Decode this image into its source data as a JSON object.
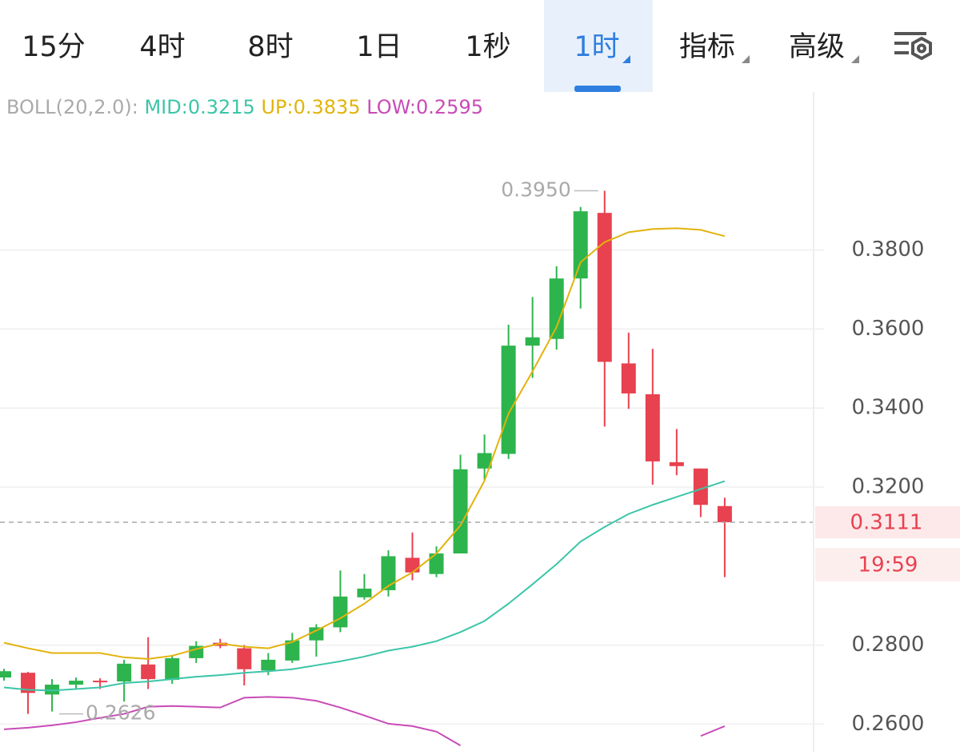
{
  "tabs": {
    "items": [
      "15分",
      "4时",
      "8时",
      "1日",
      "1秒",
      "1时",
      "指标",
      "高级"
    ],
    "active": 5,
    "dropdown": [
      5,
      6,
      7
    ]
  },
  "chart_data": {
    "type": "candlestick",
    "open": [
      0.2718,
      0.273,
      0.2675,
      0.27,
      0.271,
      0.2708,
      0.2751,
      0.2712,
      0.2767,
      0.2806,
      0.2792,
      0.2736,
      0.2761,
      0.2812,
      0.2845,
      0.2921,
      0.2939,
      0.3021,
      0.298,
      0.3032,
      0.3247,
      0.3284,
      0.3558,
      0.3575,
      0.3728,
      0.3894,
      0.3513,
      0.3435,
      0.3263,
      0.3247,
      0.3152
    ],
    "high": [
      0.274,
      0.2732,
      0.2714,
      0.2718,
      0.2716,
      0.2763,
      0.282,
      0.2775,
      0.281,
      0.2816,
      0.28,
      0.278,
      0.2831,
      0.2853,
      0.2989,
      0.298,
      0.304,
      0.3085,
      0.305,
      0.3282,
      0.3333,
      0.3611,
      0.3681,
      0.3759,
      0.3909,
      0.395,
      0.3591,
      0.355,
      0.3347,
      0.3247,
      0.3173
    ],
    "low": [
      0.271,
      0.2626,
      0.2632,
      0.2689,
      0.2689,
      0.2657,
      0.2689,
      0.2702,
      0.2755,
      0.2792,
      0.2698,
      0.2724,
      0.2755,
      0.2771,
      0.2833,
      0.2915,
      0.2923,
      0.2964,
      0.2972,
      0.3032,
      0.3218,
      0.3271,
      0.3476,
      0.3548,
      0.3652,
      0.3353,
      0.3398,
      0.3206,
      0.323,
      0.3124,
      0.2972
    ],
    "close": [
      0.2734,
      0.2679,
      0.27,
      0.271,
      0.2706,
      0.2753,
      0.2714,
      0.2767,
      0.2798,
      0.2798,
      0.2739,
      0.2763,
      0.2812,
      0.2845,
      0.2923,
      0.2943,
      0.3025,
      0.2984,
      0.3032,
      0.3245,
      0.3286,
      0.3558,
      0.3579,
      0.3728,
      0.3898,
      0.3517,
      0.3437,
      0.3265,
      0.3253,
      0.3155,
      0.3111
    ],
    "up_color": "#2db44d",
    "down_color": "#e8414f",
    "indicator": {
      "label": "BOLL(20,2.0):",
      "lines": [
        {
          "name": "MID",
          "legend": "MID:0.3215",
          "color": "#3cc5a8",
          "values": [
            0.2693,
            0.2687,
            0.2685,
            0.2689,
            0.2693,
            0.2704,
            0.2708,
            0.2714,
            0.272,
            0.2724,
            0.273,
            0.2734,
            0.2739,
            0.2749,
            0.2759,
            0.2771,
            0.2786,
            0.2796,
            0.281,
            0.2833,
            0.2861,
            0.2905,
            0.2954,
            0.3005,
            0.3062,
            0.3099,
            0.3132,
            0.3155,
            0.3175,
            0.3195,
            0.3215
          ]
        },
        {
          "name": "UP",
          "legend": "UP:0.3835",
          "color": "#e2b30c",
          "values": [
            0.2806,
            0.2792,
            0.278,
            0.278,
            0.278,
            0.2769,
            0.2765,
            0.2773,
            0.279,
            0.2804,
            0.2796,
            0.2792,
            0.2808,
            0.2837,
            0.2868,
            0.2905,
            0.295,
            0.2984,
            0.3032,
            0.3103,
            0.3216,
            0.3386,
            0.3493,
            0.3605,
            0.3769,
            0.382,
            0.3845,
            0.3853,
            0.3855,
            0.3851,
            0.3835
          ]
        },
        {
          "name": "LOW",
          "legend": "LOW:0.2595",
          "color": "#c94bb7",
          "values": [
            0.2587,
            0.2591,
            0.2597,
            0.2605,
            0.2616,
            0.2626,
            0.2644,
            0.2646,
            0.2644,
            0.2642,
            0.2667,
            0.2669,
            0.2667,
            0.2659,
            0.2642,
            0.2622,
            0.2601,
            0.2595,
            0.2581,
            0.2546,
            null,
            null,
            null,
            null,
            null,
            null,
            null,
            null,
            null,
            0.257,
            0.2595
          ]
        }
      ]
    },
    "ylim": [
      0.253,
      0.42
    ],
    "yticks": [
      {
        "value": 0.26,
        "label": "0.2600"
      },
      {
        "value": 0.28,
        "label": "0.2800"
      },
      {
        "value": 0.32,
        "label": "0.3200"
      },
      {
        "value": 0.34,
        "label": "0.3400"
      },
      {
        "value": 0.36,
        "label": "0.3600"
      },
      {
        "value": 0.38,
        "label": "0.3800"
      }
    ],
    "grid": true,
    "last_price": {
      "value": 0.3111,
      "label": "0.3111"
    },
    "countdown": "19:59",
    "annotations": [
      {
        "value": 0.395,
        "label": "0.3950"
      },
      {
        "value": 0.2626,
        "label": "0.2626"
      }
    ]
  }
}
